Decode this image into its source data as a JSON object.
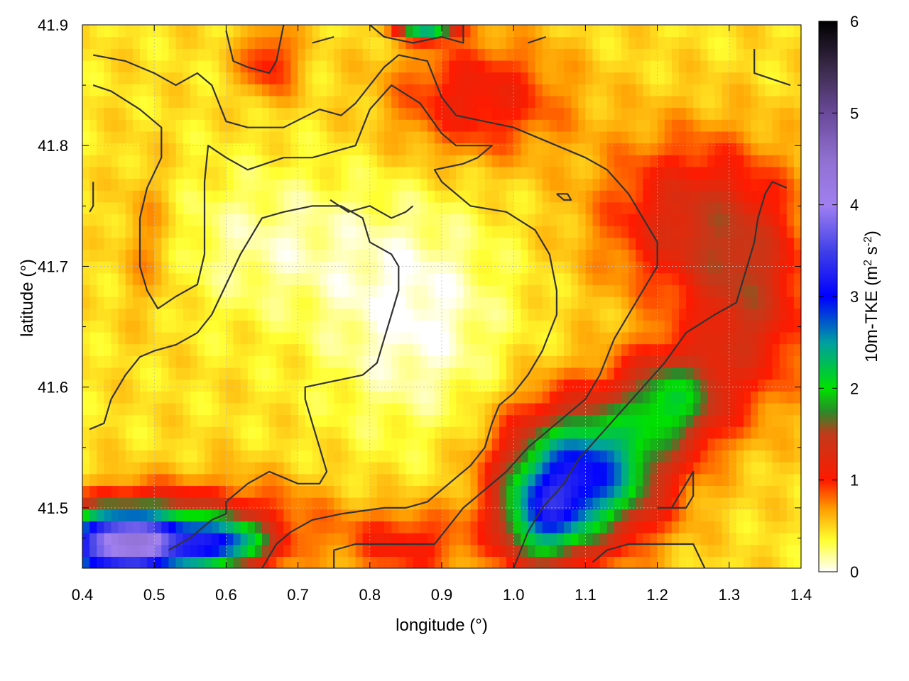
{
  "chart_data": {
    "type": "heatmap",
    "title": "",
    "xlabel": "longitude (°)",
    "ylabel": "latitude (°)",
    "colorbar_label_parts": [
      "10m-TKE (m",
      "2",
      " s",
      "-2",
      ")"
    ],
    "xlim": [
      0.4,
      1.4
    ],
    "ylim": [
      41.45,
      41.9
    ],
    "x_ticks": [
      0.4,
      0.5,
      0.6,
      0.7,
      0.8,
      0.9,
      1.0,
      1.1,
      1.2,
      1.3,
      1.4
    ],
    "x_tick_labels": [
      "0.4",
      "0.5",
      "0.6",
      "0.7",
      "0.8",
      "0.9",
      "1.0",
      "1.1",
      "1.2",
      "1.3",
      "1.4"
    ],
    "y_ticks": [
      41.5,
      41.6,
      41.7,
      41.8,
      41.9
    ],
    "y_tick_labels": [
      "41.5",
      "41.6",
      "41.7",
      "41.8",
      "41.9"
    ],
    "colorbar_range": [
      0,
      6
    ],
    "colorbar_ticks": [
      0,
      1,
      2,
      3,
      4,
      5,
      6
    ],
    "colorbar_tick_labels": [
      "0",
      "1",
      "2",
      "3",
      "4",
      "5",
      "6"
    ],
    "grid": true,
    "colormap": [
      [
        0,
        "#ffffff"
      ],
      [
        0.35,
        "#ffff30"
      ],
      [
        0.7,
        "#ff9a00"
      ],
      [
        1.0,
        "#ff1a00"
      ],
      [
        1.5,
        "#c23a1a"
      ],
      [
        1.75,
        "#2a8a2a"
      ],
      [
        2.0,
        "#00e000"
      ],
      [
        2.5,
        "#00a0a0"
      ],
      [
        3.0,
        "#0000ff"
      ],
      [
        3.5,
        "#4040e8"
      ],
      [
        4.0,
        "#a080f0"
      ],
      [
        4.5,
        "#9070d0"
      ],
      [
        5.0,
        "#6a4a9a"
      ],
      [
        5.5,
        "#3a2a4a"
      ],
      [
        6.0,
        "#000000"
      ]
    ],
    "field_features": [
      {
        "kind": "base",
        "value": 0.45
      },
      {
        "kind": "blob",
        "lon": 0.86,
        "lat": 41.66,
        "rx": 0.12,
        "ry": 0.09,
        "value": -0.45
      },
      {
        "kind": "blob",
        "lon": 0.66,
        "lat": 41.72,
        "rx": 0.14,
        "ry": 0.06,
        "value": -0.3
      },
      {
        "kind": "blob",
        "lon": 1.25,
        "lat": 41.74,
        "rx": 0.13,
        "ry": 0.07,
        "value": 0.85
      },
      {
        "kind": "blob",
        "lon": 1.33,
        "lat": 41.66,
        "rx": 0.08,
        "ry": 0.08,
        "value": 0.8
      },
      {
        "kind": "blob",
        "lon": 0.95,
        "lat": 41.84,
        "rx": 0.12,
        "ry": 0.05,
        "value": 0.7
      },
      {
        "kind": "blob",
        "lon": 0.6,
        "lat": 41.49,
        "rx": 0.14,
        "ry": 0.035,
        "value": 0.6
      },
      {
        "kind": "blob",
        "lon": 0.85,
        "lat": 41.47,
        "rx": 0.09,
        "ry": 0.03,
        "value": 0.6
      },
      {
        "kind": "blob",
        "lon": 1.1,
        "lat": 41.53,
        "rx": 0.11,
        "ry": 0.06,
        "value": 1.6
      },
      {
        "kind": "blob",
        "lon": 1.1,
        "lat": 41.53,
        "rx": 0.09,
        "ry": 0.045,
        "value": 0.9
      },
      {
        "kind": "blob",
        "lon": 1.22,
        "lat": 41.59,
        "rx": 0.07,
        "ry": 0.04,
        "value": 1.4
      },
      {
        "kind": "blob",
        "lon": 1.04,
        "lat": 41.49,
        "rx": 0.06,
        "ry": 0.04,
        "value": 1.5
      },
      {
        "kind": "blob",
        "lon": 0.46,
        "lat": 41.47,
        "rx": 0.1,
        "ry": 0.03,
        "value": 3.8
      },
      {
        "kind": "blob",
        "lon": 0.6,
        "lat": 41.47,
        "rx": 0.06,
        "ry": 0.02,
        "value": 1.6
      },
      {
        "kind": "blob",
        "lon": 0.49,
        "lat": 41.72,
        "rx": 0.04,
        "ry": 0.06,
        "value": 0.3
      },
      {
        "kind": "blob",
        "lon": 0.66,
        "lat": 41.87,
        "rx": 0.04,
        "ry": 0.03,
        "value": 0.6
      },
      {
        "kind": "blob",
        "lon": 0.88,
        "lat": 41.9,
        "rx": 0.04,
        "ry": 0.01,
        "value": 2.2
      }
    ],
    "contours": [
      [
        [
          0.415,
          41.875
        ],
        [
          0.46,
          41.87
        ],
        [
          0.5,
          41.86
        ],
        [
          0.53,
          41.85
        ],
        [
          0.56,
          41.86
        ],
        [
          0.58,
          41.85
        ],
        [
          0.6,
          41.82
        ],
        [
          0.63,
          41.815
        ],
        [
          0.68,
          41.815
        ],
        [
          0.73,
          41.83
        ],
        [
          0.76,
          41.825
        ],
        [
          0.78,
          41.835
        ],
        [
          0.82,
          41.865
        ],
        [
          0.84,
          41.875
        ],
        [
          0.88,
          41.87
        ],
        [
          0.9,
          41.84
        ],
        [
          0.92,
          41.825
        ],
        [
          0.96,
          41.82
        ],
        [
          1.0,
          41.815
        ],
        [
          1.06,
          41.8
        ],
        [
          1.1,
          41.79
        ],
        [
          1.13,
          41.78
        ],
        [
          1.16,
          41.76
        ],
        [
          1.18,
          41.74
        ],
        [
          1.2,
          41.72
        ],
        [
          1.2,
          41.7
        ],
        [
          1.17,
          41.67
        ],
        [
          1.14,
          41.64
        ],
        [
          1.12,
          41.61
        ],
        [
          1.1,
          41.59
        ],
        [
          1.06,
          41.57
        ],
        [
          1.02,
          41.55
        ],
        [
          0.99,
          41.53
        ],
        [
          0.96,
          41.515
        ],
        [
          0.93,
          41.5
        ],
        [
          0.89,
          41.47
        ],
        [
          0.84,
          41.47
        ],
        [
          0.78,
          41.47
        ],
        [
          0.75,
          41.465
        ],
        [
          0.75,
          41.45
        ]
      ],
      [
        [
          0.415,
          41.85
        ],
        [
          0.44,
          41.845
        ],
        [
          0.48,
          41.83
        ],
        [
          0.51,
          41.815
        ],
        [
          0.51,
          41.79
        ],
        [
          0.49,
          41.765
        ],
        [
          0.48,
          41.74
        ],
        [
          0.48,
          41.7
        ],
        [
          0.49,
          41.68
        ],
        [
          0.505,
          41.665
        ],
        [
          0.53,
          41.675
        ],
        [
          0.56,
          41.685
        ],
        [
          0.57,
          41.71
        ],
        [
          0.57,
          41.74
        ],
        [
          0.57,
          41.77
        ],
        [
          0.575,
          41.8
        ],
        [
          0.6,
          41.79
        ],
        [
          0.63,
          41.78
        ],
        [
          0.68,
          41.79
        ],
        [
          0.72,
          41.79
        ],
        [
          0.78,
          41.8
        ],
        [
          0.8,
          41.83
        ],
        [
          0.83,
          41.85
        ],
        [
          0.87,
          41.835
        ],
        [
          0.9,
          41.81
        ],
        [
          0.92,
          41.8
        ],
        [
          0.97,
          41.8
        ],
        [
          0.95,
          41.79
        ],
        [
          0.93,
          41.785
        ],
        [
          0.89,
          41.78
        ],
        [
          0.9,
          41.77
        ],
        [
          0.94,
          41.75
        ],
        [
          0.99,
          41.745
        ],
        [
          1.03,
          41.73
        ],
        [
          1.05,
          41.71
        ],
        [
          1.06,
          41.68
        ],
        [
          1.06,
          41.66
        ],
        [
          1.04,
          41.63
        ],
        [
          1.02,
          41.61
        ],
        [
          1.0,
          41.595
        ],
        [
          0.98,
          41.585
        ],
        [
          0.97,
          41.57
        ],
        [
          0.96,
          41.55
        ],
        [
          0.94,
          41.535
        ],
        [
          0.91,
          41.52
        ],
        [
          0.88,
          41.505
        ],
        [
          0.85,
          41.5
        ],
        [
          0.82,
          41.5
        ],
        [
          0.76,
          41.495
        ],
        [
          0.72,
          41.49
        ],
        [
          0.69,
          41.48
        ],
        [
          0.67,
          41.47
        ],
        [
          0.66,
          41.46
        ],
        [
          0.65,
          41.45
        ]
      ],
      [
        [
          0.41,
          41.565
        ],
        [
          0.43,
          41.57
        ],
        [
          0.44,
          41.59
        ],
        [
          0.46,
          41.61
        ],
        [
          0.48,
          41.625
        ],
        [
          0.5,
          41.63
        ],
        [
          0.53,
          41.635
        ],
        [
          0.56,
          41.645
        ],
        [
          0.58,
          41.66
        ],
        [
          0.6,
          41.685
        ],
        [
          0.62,
          41.71
        ],
        [
          0.63,
          41.72
        ],
        [
          0.65,
          41.74
        ],
        [
          0.68,
          41.745
        ],
        [
          0.72,
          41.75
        ],
        [
          0.76,
          41.75
        ],
        [
          0.79,
          41.74
        ],
        [
          0.8,
          41.72
        ],
        [
          0.83,
          41.71
        ],
        [
          0.84,
          41.7
        ],
        [
          0.84,
          41.68
        ],
        [
          0.83,
          41.66
        ],
        [
          0.82,
          41.64
        ],
        [
          0.81,
          41.62
        ],
        [
          0.79,
          41.61
        ],
        [
          0.75,
          41.605
        ],
        [
          0.71,
          41.6
        ],
        [
          0.71,
          41.59
        ],
        [
          0.72,
          41.57
        ],
        [
          0.73,
          41.55
        ],
        [
          0.74,
          41.53
        ],
        [
          0.73,
          41.52
        ],
        [
          0.7,
          41.52
        ],
        [
          0.66,
          41.53
        ],
        [
          0.63,
          41.52
        ],
        [
          0.6,
          41.505
        ],
        [
          0.6,
          41.495
        ],
        [
          0.58,
          41.49
        ],
        [
          0.55,
          41.475
        ],
        [
          0.52,
          41.465
        ]
      ],
      [
        [
          1.0,
          41.45
        ],
        [
          1.02,
          41.48
        ],
        [
          1.04,
          41.5
        ],
        [
          1.07,
          41.52
        ],
        [
          1.09,
          41.54
        ],
        [
          1.12,
          41.56
        ],
        [
          1.15,
          41.58
        ],
        [
          1.18,
          41.6
        ],
        [
          1.21,
          41.62
        ],
        [
          1.24,
          41.645
        ],
        [
          1.28,
          41.66
        ],
        [
          1.31,
          41.67
        ],
        [
          1.32,
          41.69
        ],
        [
          1.335,
          41.72
        ],
        [
          1.34,
          41.74
        ],
        [
          1.35,
          41.76
        ],
        [
          1.36,
          41.77
        ],
        [
          1.38,
          41.765
        ]
      ],
      [
        [
          0.745,
          41.755
        ],
        [
          0.77,
          41.745
        ],
        [
          0.8,
          41.75
        ],
        [
          0.83,
          41.74
        ],
        [
          0.85,
          41.745
        ],
        [
          0.86,
          41.75
        ]
      ],
      [
        [
          0.72,
          41.885
        ],
        [
          0.75,
          41.89
        ]
      ],
      [
        [
          0.6,
          41.895
        ],
        [
          0.61,
          41.87
        ],
        [
          0.63,
          41.865
        ],
        [
          0.66,
          41.86
        ],
        [
          0.67,
          41.87
        ],
        [
          0.68,
          41.9
        ]
      ],
      [
        [
          0.8,
          41.9
        ],
        [
          0.82,
          41.89
        ],
        [
          0.86,
          41.885
        ],
        [
          0.9,
          41.89
        ],
        [
          0.93,
          41.885
        ],
        [
          0.93,
          41.9
        ]
      ],
      [
        [
          1.02,
          41.885
        ],
        [
          1.045,
          41.89
        ]
      ],
      [
        [
          1.335,
          41.88
        ],
        [
          1.335,
          41.86
        ],
        [
          1.36,
          41.855
        ],
        [
          1.385,
          41.85
        ]
      ],
      [
        [
          0.415,
          41.77
        ],
        [
          0.415,
          41.75
        ],
        [
          0.41,
          41.745
        ]
      ],
      [
        [
          1.06,
          41.76
        ],
        [
          1.075,
          41.76
        ],
        [
          1.08,
          41.755
        ],
        [
          1.07,
          41.755
        ],
        [
          1.06,
          41.76
        ]
      ],
      [
        [
          1.2,
          41.5
        ],
        [
          1.22,
          41.5
        ],
        [
          1.24,
          41.52
        ],
        [
          1.25,
          41.53
        ],
        [
          1.25,
          41.51
        ],
        [
          1.24,
          41.5
        ],
        [
          1.2,
          41.5
        ]
      ],
      [
        [
          1.11,
          41.455
        ],
        [
          1.13,
          41.465
        ],
        [
          1.16,
          41.47
        ],
        [
          1.2,
          41.47
        ],
        [
          1.25,
          41.47
        ],
        [
          1.27,
          41.445
        ]
      ]
    ]
  }
}
